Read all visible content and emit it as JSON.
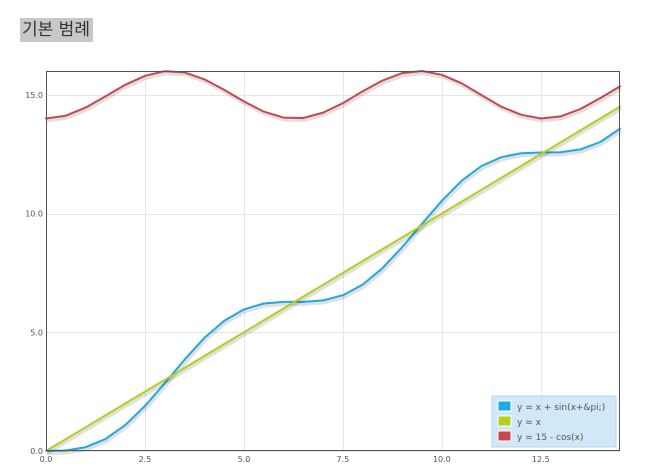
{
  "page": {
    "title": "기본 범례"
  },
  "chart_data": {
    "type": "line",
    "title": "",
    "xlabel": "",
    "ylabel": "",
    "xlim": [
      0,
      14.5
    ],
    "ylim": [
      0,
      16
    ],
    "grid": true,
    "legend_position": "bottom-right",
    "x_ticks": [
      {
        "value": 0,
        "label": "0.0"
      },
      {
        "value": 2.5,
        "label": "2.5"
      },
      {
        "value": 5,
        "label": "5.0"
      },
      {
        "value": 7.5,
        "label": "7.5"
      },
      {
        "value": 10,
        "label": "10.0"
      },
      {
        "value": 12.5,
        "label": "12.5"
      }
    ],
    "y_ticks": [
      {
        "value": 0,
        "label": "0.0"
      },
      {
        "value": 5,
        "label": "5.0"
      },
      {
        "value": 10,
        "label": "10.0"
      },
      {
        "value": 15,
        "label": "15.0"
      }
    ],
    "x": [
      0,
      0.5,
      1,
      1.5,
      2,
      2.5,
      3,
      3.5,
      4,
      4.5,
      5,
      5.5,
      6,
      6.5,
      7,
      7.5,
      8,
      8.5,
      9,
      9.5,
      10,
      10.5,
      11,
      11.5,
      12,
      12.5,
      13,
      13.5,
      14,
      14.5
    ],
    "series": [
      {
        "name": "y = x + sin(x+&pi;)",
        "color": "#1ea9e1",
        "values": [
          0,
          0.02,
          0.16,
          0.5,
          1.09,
          1.9,
          2.86,
          3.85,
          4.76,
          5.48,
          5.96,
          6.21,
          6.28,
          6.28,
          6.34,
          6.56,
          7.01,
          7.7,
          8.59,
          9.57,
          10.54,
          11.38,
          12,
          12.37,
          12.54,
          12.57,
          12.58,
          12.7,
          13.01,
          13.57
        ]
      },
      {
        "name": "y = x",
        "color": "#b5cf18",
        "values": [
          0,
          0.5,
          1,
          1.5,
          2,
          2.5,
          3,
          3.5,
          4,
          4.5,
          5,
          5.5,
          6,
          6.5,
          7,
          7.5,
          8,
          8.5,
          9,
          9.5,
          10,
          10.5,
          11,
          11.5,
          12,
          12.5,
          13,
          13.5,
          14,
          14.5
        ]
      },
      {
        "name": "y = 15 - cos(x)",
        "color": "#c9474c",
        "values": [
          14,
          14.12,
          14.46,
          14.93,
          15.42,
          15.8,
          15.99,
          15.94,
          15.65,
          15.21,
          14.72,
          14.29,
          14.04,
          14.02,
          14.25,
          14.65,
          15.15,
          15.6,
          15.91,
          16,
          15.84,
          15.48,
          14.99,
          14.5,
          14.16,
          14.0,
          14.09,
          14.4,
          14.86,
          15.35
        ]
      }
    ]
  }
}
